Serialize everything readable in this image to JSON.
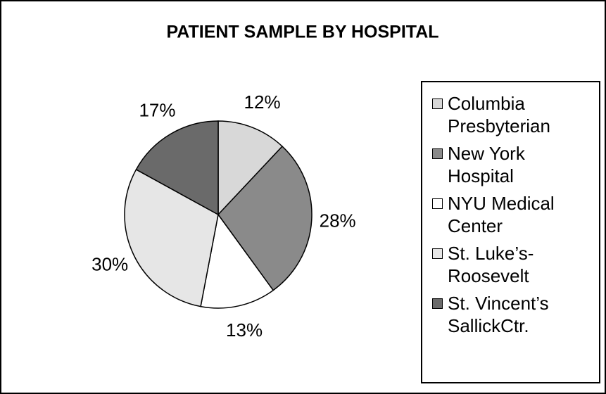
{
  "chart_data": {
    "type": "pie",
    "title": "PATIENT SAMPLE BY HOSPITAL",
    "categories": [
      "Columbia\nPresbyterian",
      "New York\nHospital",
      "NYU Medical\nCenter",
      "St. Luke’s-\nRoosevelt",
      "St. Vincent’s\nSallickCtr."
    ],
    "values": [
      12,
      28,
      13,
      30,
      17
    ],
    "value_labels": [
      "12%",
      "28%",
      "13%",
      "30%",
      "17%"
    ],
    "colors": [
      "#d8d8d8",
      "#8a8a8a",
      "#ffffff",
      "#e6e6e6",
      "#6a6a6a"
    ]
  }
}
